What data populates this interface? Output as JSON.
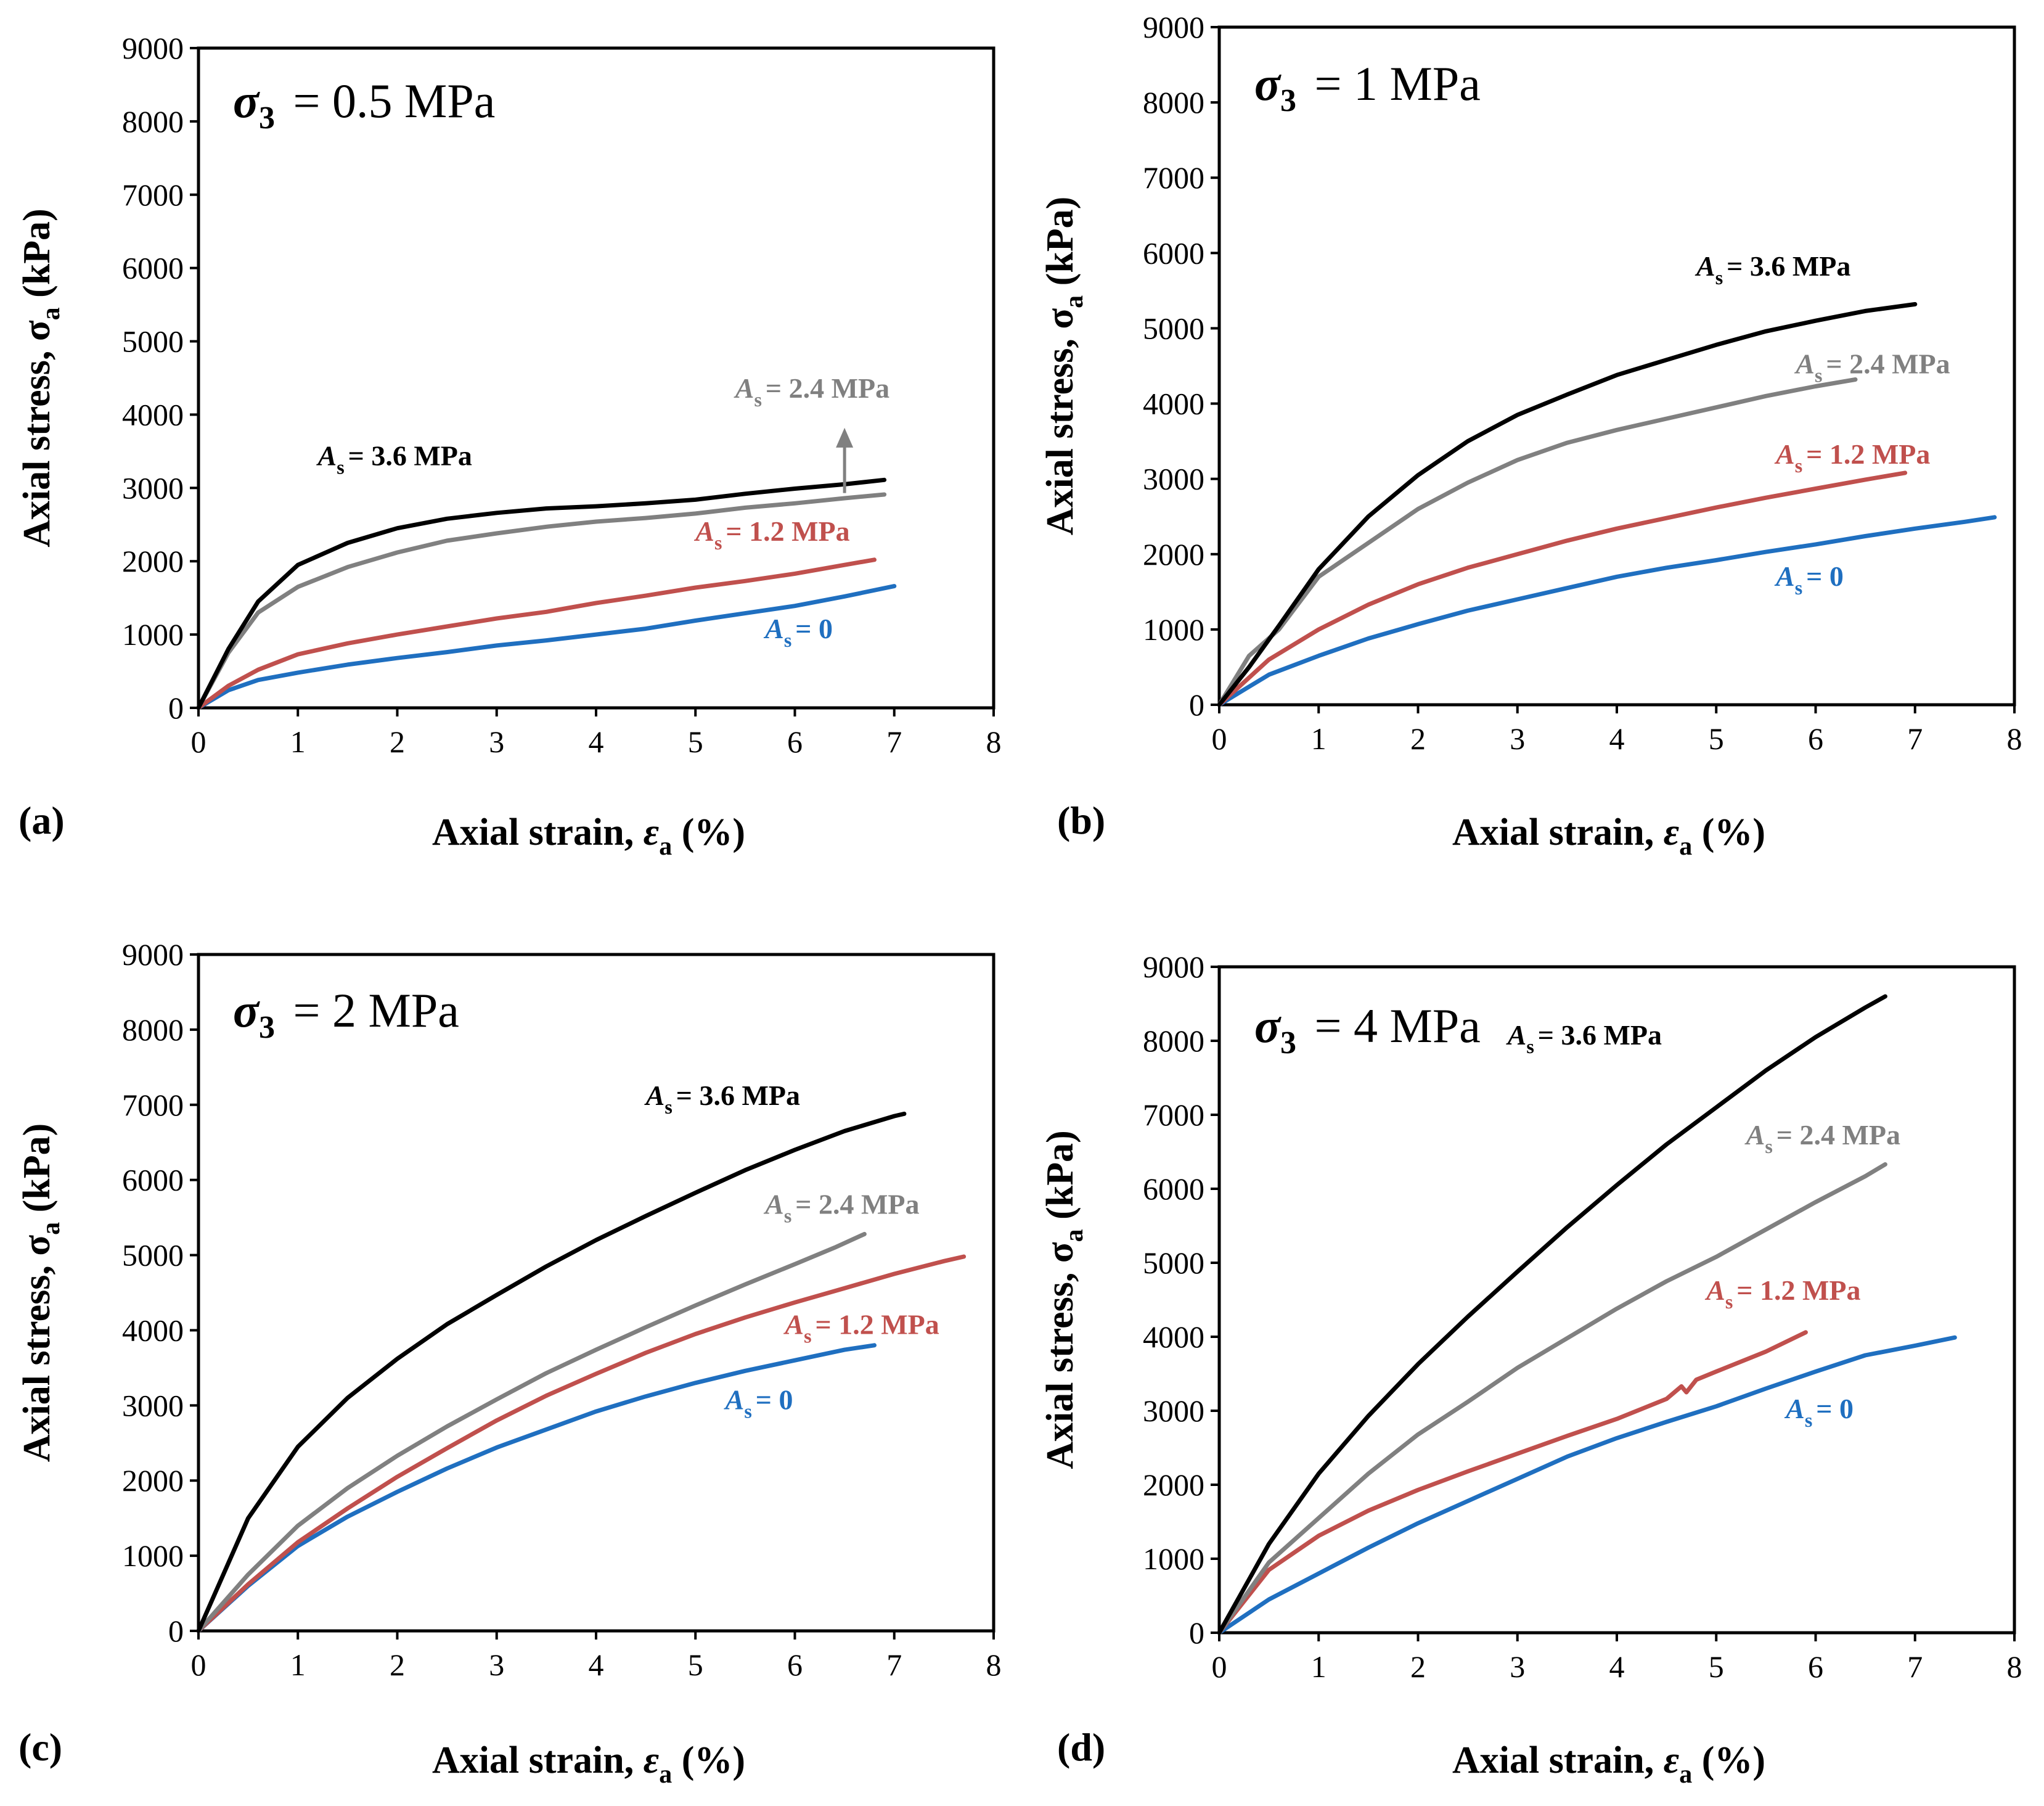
{
  "colors": {
    "As_0": "#1f6fc0",
    "As_1.2": "#c0504d",
    "As_2.4": "#808080",
    "As_3.6": "#000000"
  },
  "chart_data": [
    {
      "type": "line",
      "panel_label": "(a)",
      "confining_pressure": {
        "symbol": "σ",
        "subscript": "3",
        "text": " = 0.5 MPa"
      },
      "xlabel": {
        "main": "Axial strain, ",
        "symbol": "ε",
        "subscript": "a",
        "unit": " (%)"
      },
      "ylabel": {
        "main": "Axial stress, σ",
        "subscript": "a",
        "unit": " (kPa)"
      },
      "xlim": [
        0,
        8
      ],
      "ylim": [
        0,
        9000
      ],
      "xticks": [
        "0",
        "1",
        "2",
        "3",
        "4",
        "5",
        "6",
        "7",
        "8"
      ],
      "yticks": [
        "0",
        "1000",
        "2000",
        "3000",
        "4000",
        "5000",
        "6000",
        "7000",
        "8000",
        "9000"
      ],
      "grid": false,
      "series": [
        {
          "name": "As = 0",
          "label_value": "0",
          "color_key": "As_0",
          "label_at": [
            5.7,
            950
          ],
          "x": [
            0,
            0.3,
            0.6,
            1,
            1.5,
            2,
            2.5,
            3,
            3.5,
            4,
            4.5,
            5,
            5.5,
            6,
            6.5,
            7
          ],
          "y": [
            0,
            240,
            380,
            480,
            590,
            680,
            760,
            850,
            920,
            1000,
            1080,
            1190,
            1290,
            1390,
            1520,
            1660
          ]
        },
        {
          "name": "As = 1.2 MPa",
          "label_value": "1.2 MPa",
          "color_key": "As_1.2",
          "label_at": [
            5.0,
            2280
          ],
          "x": [
            0,
            0.3,
            0.6,
            1,
            1.5,
            2,
            2.5,
            3,
            3.5,
            4,
            4.5,
            5,
            5.5,
            6,
            6.5,
            6.8
          ],
          "y": [
            0,
            300,
            520,
            730,
            880,
            1000,
            1110,
            1220,
            1310,
            1430,
            1530,
            1640,
            1730,
            1830,
            1950,
            2020
          ]
        },
        {
          "name": "As = 2.4 MPa",
          "label_value": "2.4 MPa",
          "color_key": "As_2.4",
          "label_at": [
            5.4,
            4230
          ],
          "x": [
            0,
            0.3,
            0.6,
            1,
            1.5,
            2,
            2.5,
            3,
            3.5,
            4,
            4.5,
            5,
            5.5,
            6,
            6.5,
            6.9
          ],
          "y": [
            0,
            750,
            1300,
            1650,
            1920,
            2120,
            2280,
            2380,
            2470,
            2540,
            2590,
            2650,
            2730,
            2790,
            2860,
            2910
          ]
        },
        {
          "name": "As = 3.6 MPa",
          "label_value": "3.6 MPa",
          "color_key": "As_3.6",
          "label_at": [
            1.2,
            3310
          ],
          "x": [
            0,
            0.3,
            0.6,
            1,
            1.5,
            2,
            2.5,
            3,
            3.5,
            4,
            4.5,
            5,
            5.5,
            6,
            6.5,
            6.9
          ],
          "y": [
            0,
            800,
            1450,
            1950,
            2250,
            2450,
            2580,
            2660,
            2720,
            2750,
            2790,
            2840,
            2920,
            2990,
            3050,
            3110
          ]
        }
      ],
      "arrow": {
        "from": [
          6.5,
          2930
        ],
        "to": [
          6.5,
          3820
        ],
        "color_key": "As_2.4"
      }
    },
    {
      "type": "line",
      "panel_label": "(b)",
      "confining_pressure": {
        "symbol": "σ",
        "subscript": "3",
        "text": " = 1 MPa"
      },
      "xlabel": {
        "main": "Axial strain, ",
        "symbol": "ε",
        "subscript": "a",
        "unit": " (%)"
      },
      "ylabel": {
        "main": "Axial stress, σ",
        "subscript": "a",
        "unit": " (kPa)"
      },
      "xlim": [
        0,
        8
      ],
      "ylim": [
        0,
        9000
      ],
      "xticks": [
        "0",
        "1",
        "2",
        "3",
        "4",
        "5",
        "6",
        "7",
        "8"
      ],
      "yticks": [
        "0",
        "1000",
        "2000",
        "3000",
        "4000",
        "5000",
        "6000",
        "7000",
        "8000",
        "9000"
      ],
      "grid": false,
      "series": [
        {
          "name": "As = 0",
          "label_value": "0",
          "color_key": "As_0",
          "label_at": [
            5.6,
            1580
          ],
          "x": [
            0,
            0.5,
            1,
            1.5,
            2,
            2.5,
            3,
            3.5,
            4,
            4.5,
            5,
            5.5,
            6,
            6.5,
            7,
            7.5,
            7.8
          ],
          "y": [
            0,
            400,
            650,
            880,
            1070,
            1250,
            1400,
            1550,
            1700,
            1820,
            1920,
            2030,
            2130,
            2240,
            2340,
            2430,
            2490
          ]
        },
        {
          "name": "As = 1.2 MPa",
          "label_value": "1.2 MPa",
          "color_key": "As_1.2",
          "label_at": [
            5.6,
            3200
          ],
          "x": [
            0,
            0.5,
            1,
            1.5,
            2,
            2.5,
            3,
            3.5,
            4,
            4.5,
            5,
            5.5,
            6,
            6.5,
            6.9
          ],
          "y": [
            0,
            600,
            1000,
            1330,
            1600,
            1820,
            2000,
            2180,
            2340,
            2480,
            2620,
            2750,
            2870,
            2990,
            3080
          ]
        },
        {
          "name": "As = 2.4 MPa",
          "label_value": "2.4 MPa",
          "color_key": "As_2.4",
          "label_at": [
            5.8,
            4400
          ],
          "x": [
            0,
            0.3,
            0.6,
            1,
            1.5,
            2,
            2.5,
            3,
            3.5,
            4,
            4.5,
            5,
            5.5,
            6,
            6.4
          ],
          "y": [
            0,
            650,
            1000,
            1700,
            2150,
            2600,
            2950,
            3250,
            3480,
            3650,
            3800,
            3950,
            4100,
            4230,
            4320
          ]
        },
        {
          "name": "As = 3.6 MPa",
          "label_value": "3.6 MPa",
          "color_key": "As_3.6",
          "label_at": [
            4.8,
            5700
          ],
          "x": [
            0,
            0.3,
            0.6,
            1,
            1.5,
            2,
            2.5,
            3,
            3.5,
            4,
            4.5,
            5,
            5.5,
            6,
            6.5,
            7
          ],
          "y": [
            0,
            500,
            1050,
            1800,
            2500,
            3050,
            3500,
            3850,
            4120,
            4380,
            4580,
            4780,
            4960,
            5100,
            5230,
            5320
          ]
        }
      ]
    },
    {
      "type": "line",
      "panel_label": "(c)",
      "confining_pressure": {
        "symbol": "σ",
        "subscript": "3",
        "text": " = 2 MPa"
      },
      "xlabel": {
        "main": "Axial strain, ",
        "symbol": "ε",
        "subscript": "a",
        "unit": " (%)"
      },
      "ylabel": {
        "main": "Axial stress, σ",
        "subscript": "a",
        "unit": " (kPa)"
      },
      "xlim": [
        0,
        8
      ],
      "ylim": [
        0,
        9000
      ],
      "xticks": [
        "0",
        "1",
        "2",
        "3",
        "4",
        "5",
        "6",
        "7",
        "8"
      ],
      "yticks": [
        "0",
        "1000",
        "2000",
        "3000",
        "4000",
        "5000",
        "6000",
        "7000",
        "8000",
        "9000"
      ],
      "grid": false,
      "series": [
        {
          "name": "As = 0",
          "label_value": "0",
          "color_key": "As_0",
          "label_at": [
            5.3,
            2950
          ],
          "x": [
            0,
            0.5,
            1,
            1.5,
            2,
            2.5,
            3,
            3.5,
            4,
            4.5,
            5,
            5.5,
            6,
            6.5,
            6.8
          ],
          "y": [
            0,
            600,
            1130,
            1520,
            1850,
            2160,
            2440,
            2680,
            2920,
            3120,
            3300,
            3460,
            3600,
            3740,
            3800
          ]
        },
        {
          "name": "As = 1.2 MPa",
          "label_value": "1.2 MPa",
          "color_key": "As_1.2",
          "label_at": [
            5.9,
            3950
          ],
          "x": [
            0,
            0.5,
            1,
            1.5,
            2,
            2.5,
            3,
            3.5,
            4,
            4.5,
            5,
            5.5,
            6,
            6.5,
            7,
            7.5,
            7.7
          ],
          "y": [
            0,
            620,
            1180,
            1630,
            2050,
            2430,
            2800,
            3130,
            3420,
            3700,
            3950,
            4170,
            4370,
            4560,
            4750,
            4920,
            4980
          ]
        },
        {
          "name": "As = 2.4 MPa",
          "label_value": "2.4 MPa",
          "color_key": "As_2.4",
          "label_at": [
            5.7,
            5550
          ],
          "x": [
            0,
            0.5,
            1,
            1.5,
            2,
            2.5,
            3,
            3.5,
            4,
            4.5,
            5,
            5.5,
            6,
            6.4,
            6.7
          ],
          "y": [
            0,
            750,
            1400,
            1900,
            2330,
            2720,
            3080,
            3430,
            3740,
            4040,
            4330,
            4610,
            4880,
            5100,
            5280
          ]
        },
        {
          "name": "As = 3.6 MPa",
          "label_value": "3.6 MPa",
          "color_key": "As_3.6",
          "label_at": [
            4.5,
            7000
          ],
          "x": [
            0,
            0.5,
            1,
            1.5,
            2,
            2.5,
            3,
            3.5,
            4,
            4.5,
            5,
            5.5,
            6,
            6.5,
            7,
            7.1
          ],
          "y": [
            0,
            1500,
            2450,
            3100,
            3620,
            4080,
            4470,
            4850,
            5200,
            5520,
            5830,
            6130,
            6400,
            6650,
            6850,
            6880
          ]
        }
      ]
    },
    {
      "type": "line",
      "panel_label": "(d)",
      "confining_pressure": {
        "symbol": "σ",
        "subscript": "3",
        "text": " = 4 MPa"
      },
      "xlabel": {
        "main": "Axial strain, ",
        "symbol": "ε",
        "subscript": "a",
        "unit": " (%)"
      },
      "ylabel": {
        "main": "Axial stress, σ",
        "subscript": "a",
        "unit": " (kPa)"
      },
      "xlim": [
        0,
        8
      ],
      "ylim": [
        0,
        9000
      ],
      "xticks": [
        "0",
        "1",
        "2",
        "3",
        "4",
        "5",
        "6",
        "7",
        "8"
      ],
      "yticks": [
        "0",
        "1000",
        "2000",
        "3000",
        "4000",
        "5000",
        "6000",
        "7000",
        "8000",
        "9000"
      ],
      "grid": false,
      "series": [
        {
          "name": "As = 0",
          "label_value": "0",
          "color_key": "As_0",
          "label_at": [
            5.7,
            2900
          ],
          "x": [
            0,
            0.5,
            1,
            1.5,
            2,
            2.5,
            3,
            3.5,
            4,
            4.5,
            5,
            5.5,
            6,
            6.5,
            7,
            7.4
          ],
          "y": [
            0,
            450,
            800,
            1150,
            1480,
            1780,
            2080,
            2380,
            2630,
            2850,
            3060,
            3300,
            3530,
            3750,
            3880,
            3990
          ]
        },
        {
          "name": "As = 1.2 MPa",
          "label_value": "1.2 MPa",
          "color_key": "As_1.2",
          "label_at": [
            4.9,
            4500
          ],
          "x": [
            0,
            0.5,
            1,
            1.5,
            2,
            2.5,
            3,
            3.5,
            4,
            4.5,
            4.65,
            4.7,
            4.8,
            5,
            5.5,
            5.9
          ],
          "y": [
            0,
            850,
            1310,
            1650,
            1930,
            2180,
            2420,
            2660,
            2890,
            3160,
            3330,
            3250,
            3420,
            3530,
            3800,
            4060
          ]
        },
        {
          "name": "As = 2.4 MPa",
          "label_value": "2.4 MPa",
          "color_key": "As_2.4",
          "label_at": [
            5.3,
            6600
          ],
          "x": [
            0,
            0.5,
            1,
            1.5,
            2,
            2.5,
            3,
            3.5,
            4,
            4.5,
            5,
            5.5,
            6,
            6.5,
            6.7
          ],
          "y": [
            0,
            950,
            1550,
            2150,
            2680,
            3120,
            3580,
            3980,
            4380,
            4750,
            5080,
            5450,
            5820,
            6170,
            6330
          ]
        },
        {
          "name": "As = 3.6 MPa",
          "label_value": "3.6 MPa",
          "color_key": "As_3.6",
          "label_at": [
            2.9,
            7950
          ],
          "x": [
            0,
            0.5,
            1,
            1.5,
            2,
            2.5,
            3,
            3.5,
            4,
            4.5,
            5,
            5.5,
            6,
            6.5,
            6.7
          ],
          "y": [
            0,
            1200,
            2150,
            2930,
            3630,
            4270,
            4880,
            5480,
            6050,
            6600,
            7100,
            7600,
            8050,
            8450,
            8600
          ]
        }
      ]
    }
  ]
}
